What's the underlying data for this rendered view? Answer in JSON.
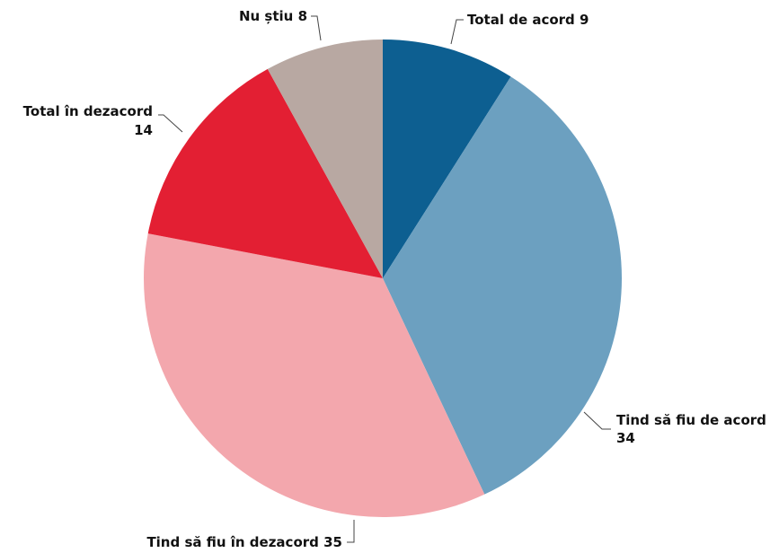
{
  "chart_data": {
    "type": "pie",
    "title": "",
    "slices": [
      {
        "label": "Total de acord",
        "value": 9,
        "color": "#0d5f91"
      },
      {
        "label": "Tind să fiu de acord",
        "value": 34,
        "color": "#6ca0c0"
      },
      {
        "label": "Tind să fiu în dezacord",
        "value": 35,
        "color": "#f3a7ad"
      },
      {
        "label": "Total în dezacord",
        "value": 14,
        "color": "#e31f33"
      },
      {
        "label": "Nu știu",
        "value": 8,
        "color": "#b8a8a2"
      }
    ],
    "start": "top",
    "direction": "clockwise",
    "legend": "none"
  }
}
